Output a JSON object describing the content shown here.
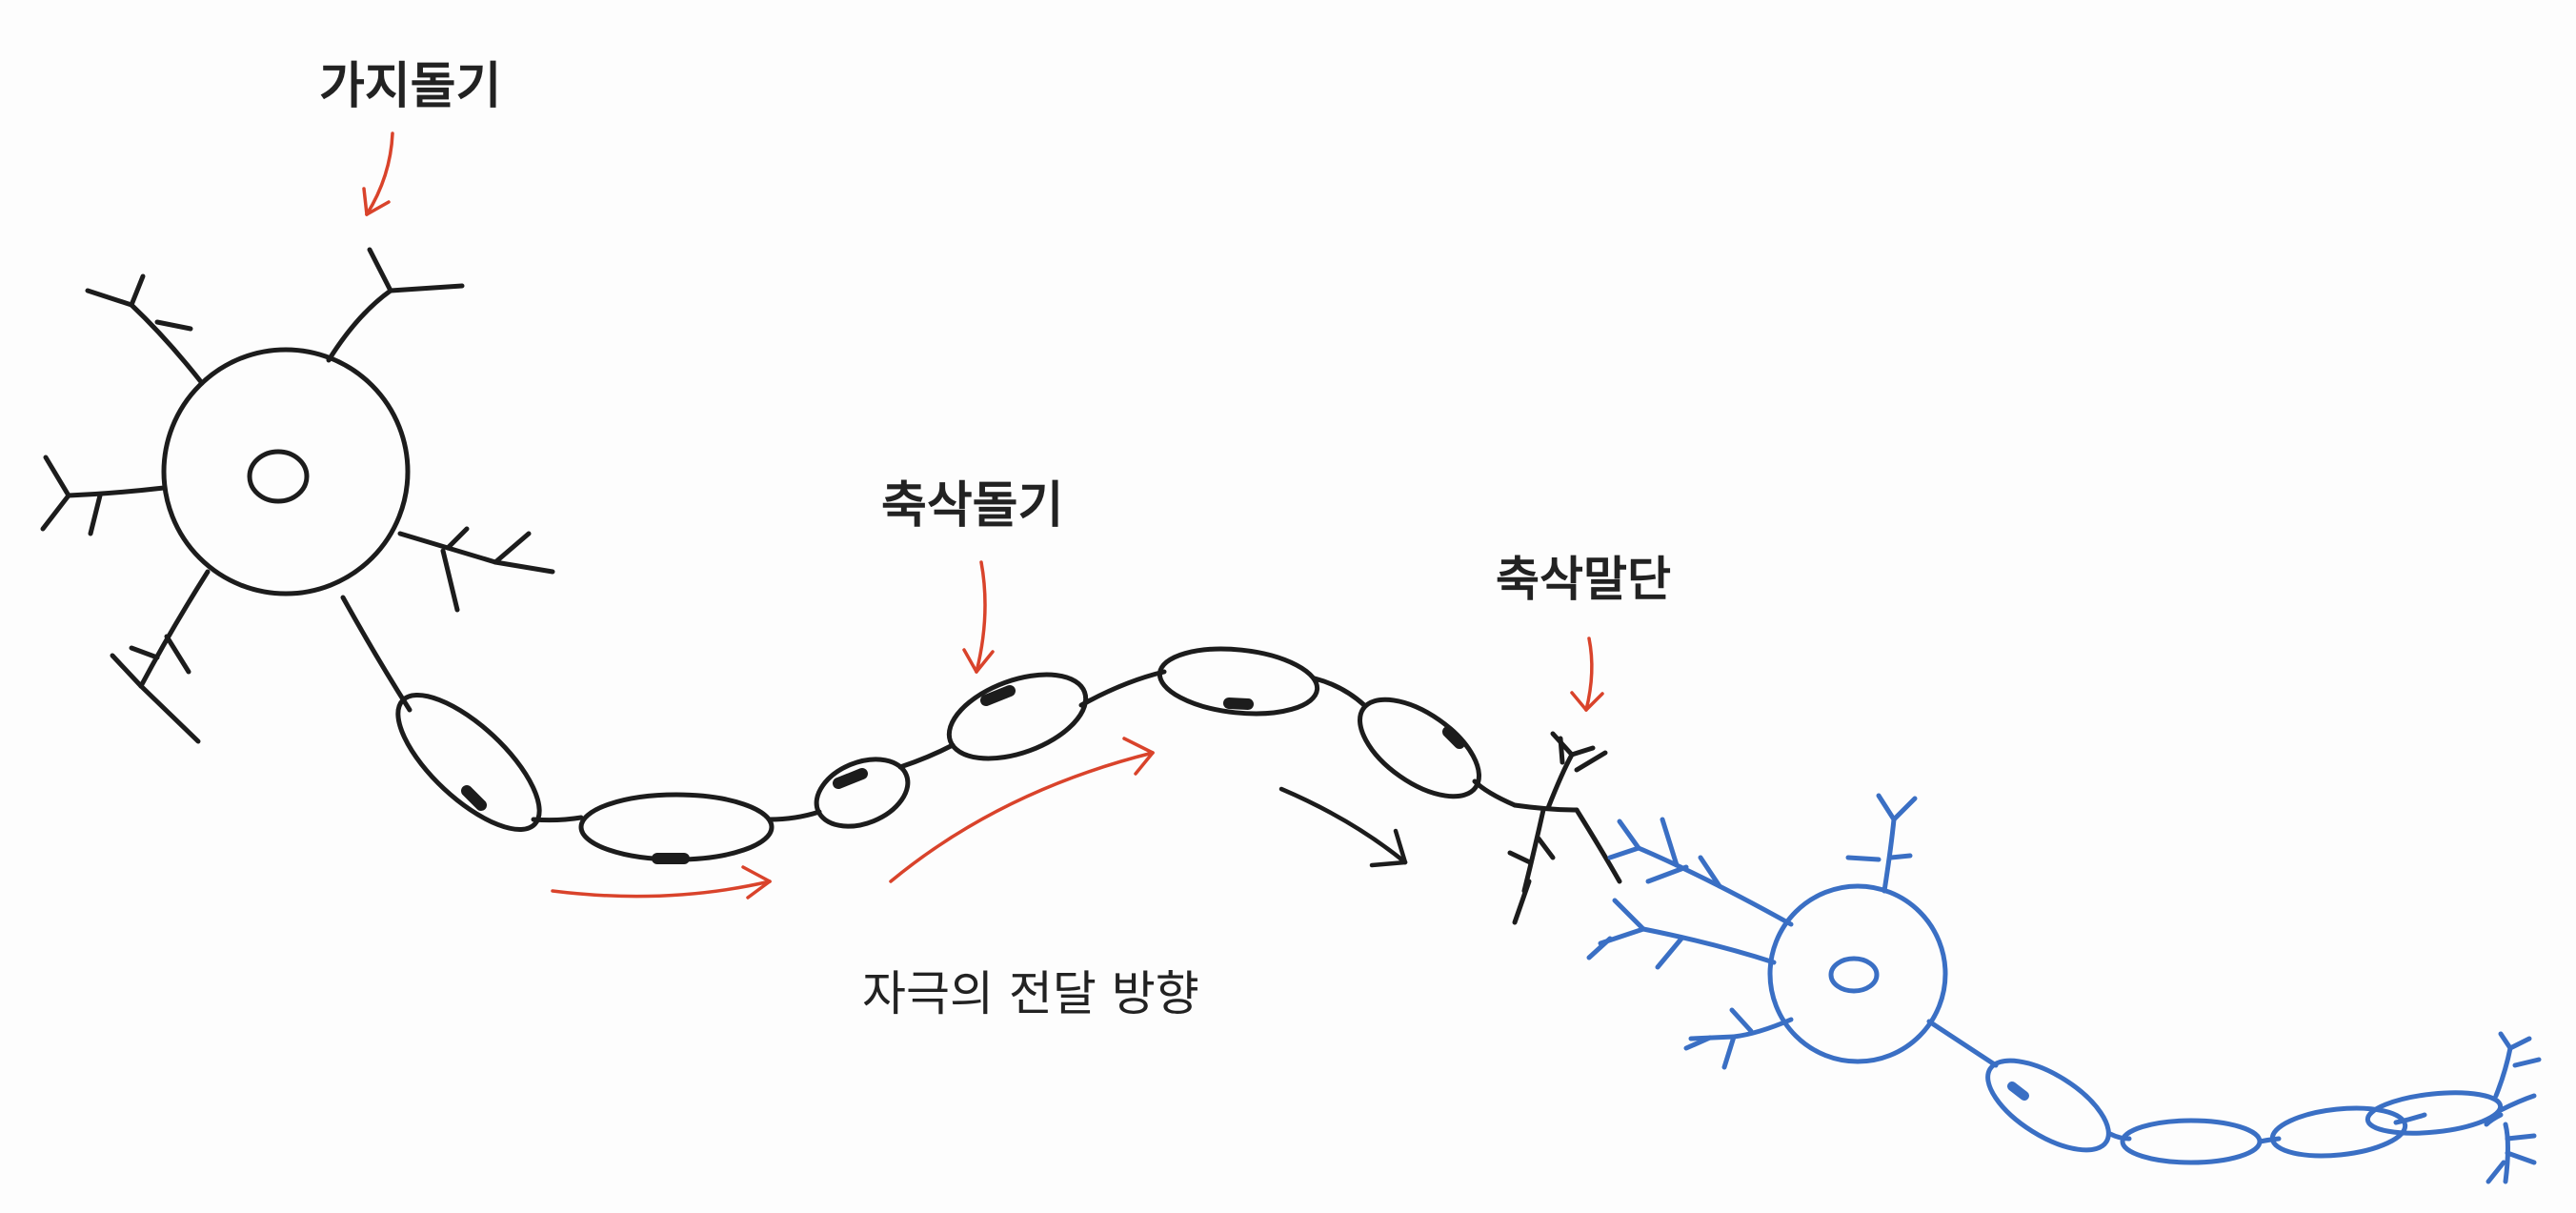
{
  "labels": {
    "dendrite": "가지돌기",
    "axon": "축삭돌기",
    "axon_terminal": "축삭말단",
    "signal_direction": "자극의 전달 방향"
  },
  "colors": {
    "neuron_1": "#1c1c1c",
    "neuron_2": "#3a6fc4",
    "pointer_arrows": "#d9432b",
    "signal_arrows": "#d9432b",
    "synapse_arrow": "#1c1c1c",
    "myelin_band": "#1c1c1c"
  },
  "icons": {
    "pointer": "arrow-down-icon",
    "signal": "arrow-right-icon"
  }
}
